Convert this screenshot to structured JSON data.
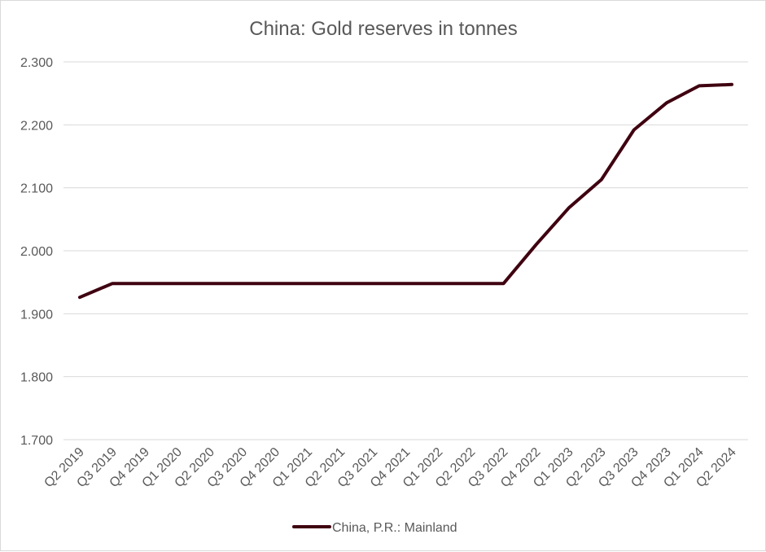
{
  "chart_data": {
    "type": "line",
    "title": "China: Gold reserves in tonnes",
    "xlabel": "",
    "ylabel": "",
    "ylim": [
      1700,
      2300
    ],
    "yticks": [
      1700,
      1800,
      1900,
      2000,
      2100,
      2200,
      2300
    ],
    "ytick_labels": [
      "1.700",
      "1.800",
      "1.900",
      "2.000",
      "2.100",
      "2.200",
      "2.300"
    ],
    "grid": true,
    "legend_position": "bottom",
    "categories": [
      "Q2 2019",
      "Q3 2019",
      "Q4 2019",
      "Q1 2020",
      "Q2 2020",
      "Q3 2020",
      "Q4 2020",
      "Q1 2021",
      "Q2 2021",
      "Q3 2021",
      "Q4 2021",
      "Q1 2022",
      "Q2 2022",
      "Q3 2022",
      "Q4 2022",
      "Q1 2023",
      "Q2 2023",
      "Q3 2023",
      "Q4 2023",
      "Q1 2024",
      "Q2 2024"
    ],
    "series": [
      {
        "name": "China, P.R.: Mainland",
        "color": "#3f0010",
        "values": [
          1926,
          1948,
          1948,
          1948,
          1948,
          1948,
          1948,
          1948,
          1948,
          1948,
          1948,
          1948,
          1948,
          1948,
          2010,
          2068,
          2113,
          2192,
          2235,
          2262,
          2264
        ]
      }
    ]
  }
}
